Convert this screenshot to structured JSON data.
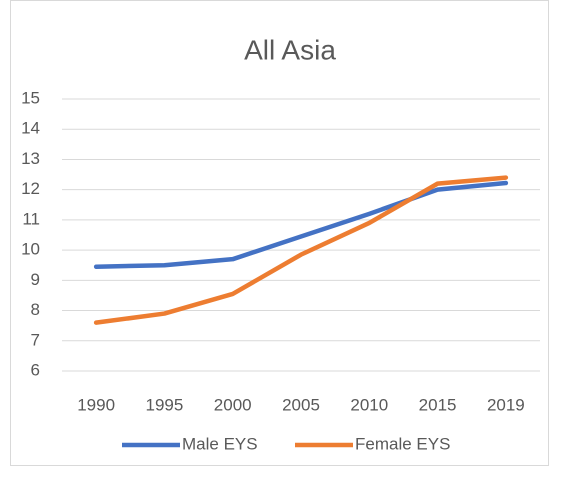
{
  "chart_data": {
    "type": "line",
    "title": "All Asia",
    "categories": [
      "1990",
      "1995",
      "2000",
      "2005",
      "2010",
      "2015",
      "2019"
    ],
    "series": [
      {
        "name": "Male EYS",
        "color": "#4472c4",
        "values": [
          9.45,
          9.5,
          9.7,
          10.45,
          11.2,
          12.0,
          12.22
        ]
      },
      {
        "name": "Female EYS",
        "color": "#ed7d31",
        "values": [
          7.6,
          7.9,
          8.55,
          9.85,
          10.9,
          12.2,
          12.4
        ]
      }
    ],
    "ylim": [
      6,
      15
    ],
    "yticks": [
      6,
      7,
      8,
      9,
      10,
      11,
      12,
      13,
      14,
      15
    ],
    "grid": true,
    "legend": "bottom"
  }
}
